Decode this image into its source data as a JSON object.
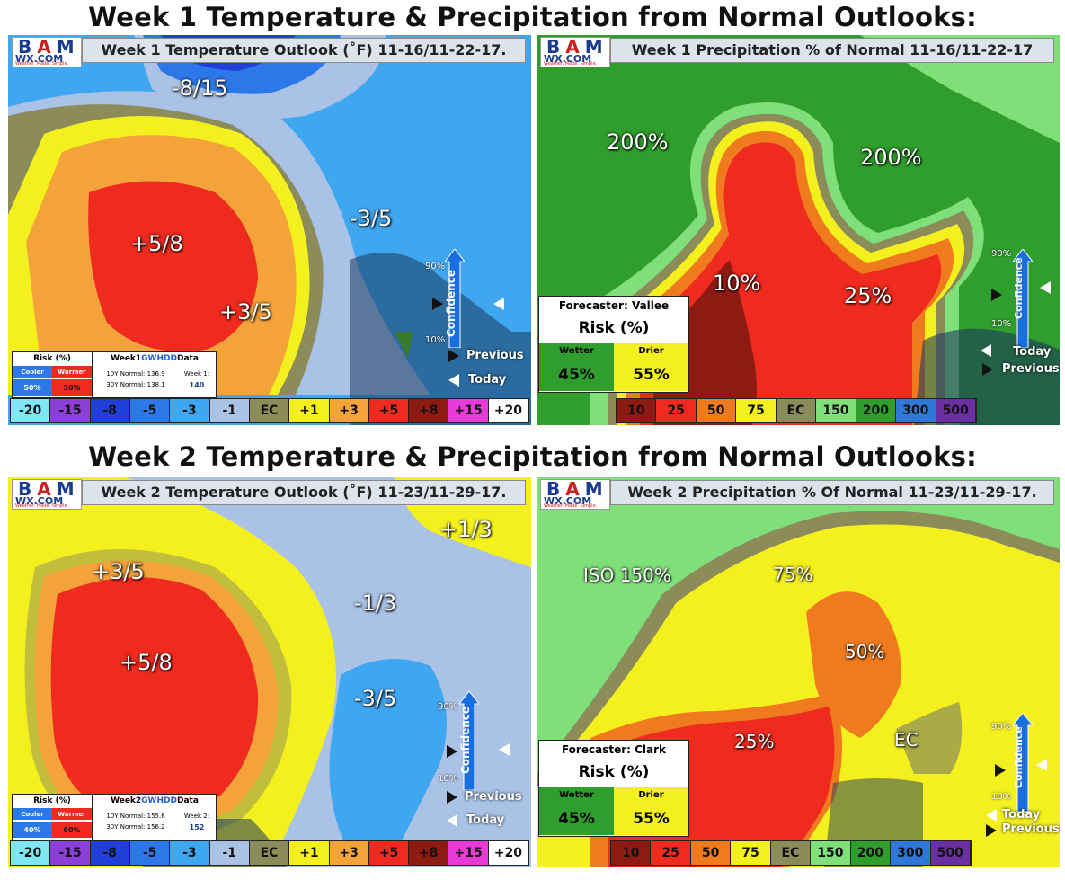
{
  "titles": {
    "week1": "Week 1 Temperature & Precipitation from Normal Outlooks:",
    "week2": "Week 2 Temperature & Precipitation from Normal Outlooks:"
  },
  "logo": {
    "bm": "BAM",
    "wx": "WX.COM",
    "tagline": "Weather. Made. Simple."
  },
  "panels": {
    "w1_temp": {
      "header": "Week 1 Temperature Outlook (˚F) 11-16/11-22-17.",
      "labels": [
        "-8/15",
        "+5/8",
        "+3/5",
        "-3/5"
      ],
      "risk": {
        "title": "Risk (%)",
        "cooler": "Cooler",
        "warmer": "Warmer",
        "cooler_val": "50%",
        "warmer_val": "50%"
      },
      "gwhdd": {
        "title_prefix": "Week1 ",
        "title_hl": "GWHDD",
        "title_suffix": " Data",
        "normal10": "10Y Normal: 136.9",
        "normal30": "30Y Normal: 138.1",
        "week_label": "Week 1:",
        "week_val": "140"
      }
    },
    "w1_precip": {
      "header": "Week 1 Precipitation % of Normal 11-16/11-22-17",
      "labels": [
        "200%",
        "200%",
        "10%",
        "25%"
      ],
      "forecaster": "Forecaster: Vallee",
      "risk": {
        "title": "Risk (%)",
        "wetter": "Wetter",
        "drier": "Drier",
        "wetter_val": "45%",
        "drier_val": "55%"
      }
    },
    "w2_temp": {
      "header": "Week 2 Temperature Outlook (˚F) 11-23/11-29-17.",
      "labels": [
        "+1/3",
        "+3/5",
        "-1/3",
        "+5/8",
        "-3/5"
      ],
      "risk": {
        "title": "Risk (%)",
        "cooler": "Cooler",
        "warmer": "Warmer",
        "cooler_val": "40%",
        "warmer_val": "60%"
      },
      "gwhdd": {
        "title_prefix": "Week2 ",
        "title_hl": "GWHDD",
        "title_suffix": " Data",
        "normal10": "10Y Normal: 155.6",
        "normal30": "30Y Normal: 156.2",
        "week_label": "Week 2:",
        "week_val": "152"
      }
    },
    "w2_precip": {
      "header": "Week 2 Precipitation % Of Normal 11-23/11-29-17.",
      "labels": [
        "ISO 150%",
        "75%",
        "50%",
        "25%",
        "EC"
      ],
      "forecaster": "Forecaster: Clark",
      "risk": {
        "title": "Risk (%)",
        "wetter": "Wetter",
        "drier": "Drier",
        "wetter_val": "45%",
        "drier_val": "55%"
      }
    }
  },
  "confidence": {
    "word": "Confidence",
    "high": "90%",
    "low": "10%",
    "previous": "Previous",
    "today": "Today"
  },
  "temp_legend": [
    {
      "label": "-20",
      "color": "#7fe6f2"
    },
    {
      "label": "-15",
      "color": "#8a3fd6"
    },
    {
      "label": "-8",
      "color": "#1f3fd8"
    },
    {
      "label": "-5",
      "color": "#2d78e8"
    },
    {
      "label": "-3",
      "color": "#3fa6f0"
    },
    {
      "label": "-1",
      "color": "#a9c2e6"
    },
    {
      "label": "EC",
      "color": "#8c8c5a"
    },
    {
      "label": "+1",
      "color": "#f4f01e"
    },
    {
      "label": "+3",
      "color": "#f4a33a"
    },
    {
      "label": "+5",
      "color": "#ef2a1e"
    },
    {
      "label": "+8",
      "color": "#8e1a14"
    },
    {
      "label": "+15",
      "color": "#e83ad6"
    },
    {
      "label": "+20",
      "color": "#ffffff"
    }
  ],
  "precip_legend": [
    {
      "label": "10",
      "color": "#8e1a14"
    },
    {
      "label": "25",
      "color": "#ef2a1e"
    },
    {
      "label": "50",
      "color": "#f07a1e"
    },
    {
      "label": "75",
      "color": "#f4f01e"
    },
    {
      "label": "EC",
      "color": "#8c8c5a"
    },
    {
      "label": "150",
      "color": "#7fe07a"
    },
    {
      "label": "200",
      "color": "#2f9e2c"
    },
    {
      "label": "300",
      "color": "#2f78d8"
    },
    {
      "label": "500",
      "color": "#6a2fa0"
    }
  ]
}
